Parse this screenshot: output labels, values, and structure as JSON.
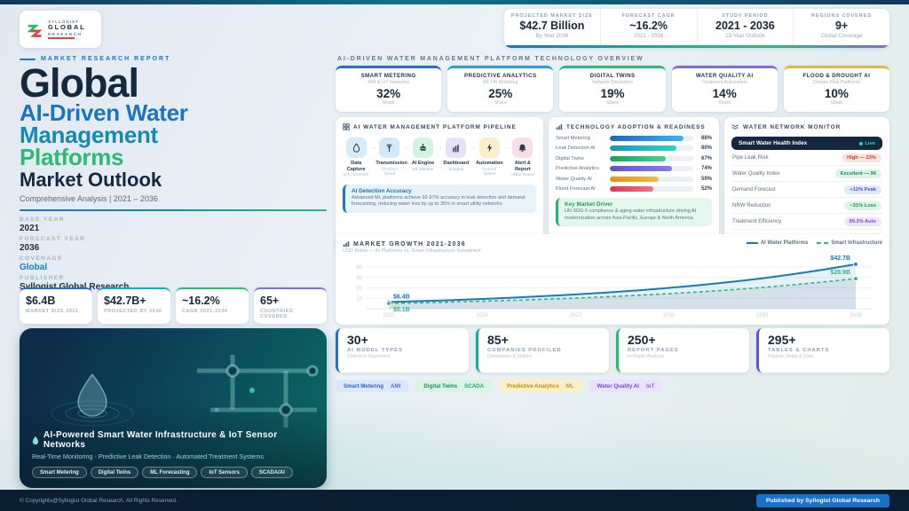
{
  "theme": {
    "navy": "#13283e",
    "blue": "#1a73c4",
    "teal": "#1789b5",
    "green": "#2eb874",
    "purple": "#7c6fd8",
    "amber": "#eab43e"
  },
  "brand": {
    "name_top": "SYLLOGIST",
    "name_mid": "GLOBAL",
    "name_bot": "RESEARCH",
    "report_tag": "MARKET RESEARCH REPORT"
  },
  "title": {
    "line1": "Global",
    "line2": "AI-Driven Water",
    "line3": "Management",
    "line4": "Platforms",
    "line5": "Market Outlook",
    "subtitle": "Comprehensive Analysis  |  2021 – 2036"
  },
  "meta": [
    {
      "label": "BASE YEAR",
      "value": "2021"
    },
    {
      "label": "FORECAST YEAR",
      "value": "2036"
    },
    {
      "label": "COVERAGE",
      "value": "Global"
    },
    {
      "label": "PUBLISHER",
      "value": "Syllogist Global Research"
    }
  ],
  "left_stats": [
    {
      "value": "$6.4B",
      "label": "MARKET SIZE 2021",
      "color": "#2b6cd0"
    },
    {
      "value": "$42.7B+",
      "label": "PROJECTED BY 2036",
      "color": "#17a8c4"
    },
    {
      "value": "~16.2%",
      "label": "CAGR 2021-2036",
      "color": "#2eb874"
    },
    {
      "value": "65+",
      "label": "COUNTRIES COVERED",
      "color": "#7c6fd8"
    }
  ],
  "hero": {
    "title": "AI-Powered Smart Water Infrastructure & IoT Sensor Networks",
    "subtitle": "Real-Time Monitoring · Predictive Leak Detection · Automated Treatment Systems",
    "chips": [
      "Smart Metering",
      "Digital Twins",
      "ML Forecasting",
      "IoT Sensors",
      "SCADA/AI"
    ]
  },
  "header_stats": [
    {
      "label": "PROJECTED MARKET SIZE",
      "value": "$42.7 Billion",
      "sub": "By Year 2036"
    },
    {
      "label": "FORECAST CAGR",
      "value": "~16.2%",
      "sub": "2021 - 2036"
    },
    {
      "label": "STUDY PERIOD",
      "value": "2021 - 2036",
      "sub": "15-Year Outlook"
    },
    {
      "label": "REGIONS COVERED",
      "value": "9+",
      "sub": "Global Coverage"
    }
  ],
  "section_label": "AI-DRIVEN WATER MANAGEMENT PLATFORM TECHNOLOGY OVERVIEW",
  "tech_cards": [
    {
      "name": "SMART METERING",
      "sub": "AMI & IoT Networks",
      "value": "32%",
      "share": "Share",
      "color": "#2b6cd0"
    },
    {
      "name": "PREDICTIVE ANALYTICS",
      "sub": "ML / AI Modeling",
      "value": "25%",
      "share": "Share",
      "color": "#2e9ad6"
    },
    {
      "name": "DIGITAL TWINS",
      "sub": "Network Simulation",
      "value": "19%",
      "share": "Share",
      "color": "#2eb874"
    },
    {
      "name": "WATER QUALITY AI",
      "sub": "Treatment Automation",
      "value": "14%",
      "share": "Share",
      "color": "#7c6fd8"
    },
    {
      "name": "FLOOD & DROUGHT AI",
      "sub": "Climate Risk Platforms",
      "value": "10%",
      "share": "Share",
      "color": "#eab43e"
    }
  ],
  "pipeline": {
    "heading": "AI WATER MANAGEMENT PLATFORM PIPELINE",
    "steps": [
      {
        "name": "Data Capture",
        "sub": "IoT / Sensors",
        "bg": "#d8eafb"
      },
      {
        "name": "Transmission",
        "sub": "SCADA / Cloud",
        "bg": "#d4e9f9"
      },
      {
        "name": "AI Engine",
        "sub": "ML Models",
        "bg": "#d4f3e1"
      },
      {
        "name": "Dashboard",
        "sub": "Insights",
        "bg": "#e6e0f8"
      },
      {
        "name": "Automation",
        "sub": "Control Valves",
        "bg": "#fbeecb"
      },
      {
        "name": "Alert & Report",
        "sub": "Utility Teams",
        "bg": "#fbdde6"
      }
    ],
    "note_title": "AI Detection Accuracy",
    "note_text": "Advanced ML platforms achieve 92-97% accuracy in leak detection and demand forecasting, reducing water loss by up to 35% in smart utility networks"
  },
  "adoption": {
    "heading": "TECHNOLOGY ADOPTION & READINESS",
    "bars": [
      {
        "label": "Smart Metering",
        "value": "88%",
        "grad": "linear-gradient(90deg,#1f63c9,#38b6f0)"
      },
      {
        "label": "Leak Detection AI",
        "value": "80%",
        "grad": "linear-gradient(90deg,#1396c4,#2ed3c4)"
      },
      {
        "label": "Digital Twins",
        "value": "67%",
        "grad": "linear-gradient(90deg,#18a35f,#4ccf8d)"
      },
      {
        "label": "Predictive Analytics",
        "value": "74%",
        "grad": "linear-gradient(90deg,#5a54d8,#8a7cf0)"
      },
      {
        "label": "Water Quality AI",
        "value": "59%",
        "grad": "linear-gradient(90deg,#e8920f,#f7bb45)"
      },
      {
        "label": "Flood Forecast AI",
        "value": "52%",
        "grad": "linear-gradient(90deg,#df3550,#f2708a)"
      }
    ],
    "note_title": "Key Market Driver",
    "note_text": "UN SDG 6 compliance & aging water infrastructure driving AI modernization across Asia-Pacific, Europe & North America"
  },
  "monitor": {
    "heading": "WATER NETWORK MONITOR",
    "index_title": "Smart Water Health Index",
    "live_label": "Live",
    "rows": [
      {
        "label": "Pipe Leak Risk",
        "badge": "High — 23%",
        "bg": "#fde4e4",
        "fg": "#d93025"
      },
      {
        "label": "Water Quality Index",
        "badge": "Excellent — 96",
        "bg": "#dcf5e7",
        "fg": "#13915d"
      },
      {
        "label": "Demand Forecast",
        "badge": "+12% Peak",
        "bg": "#e2e9fd",
        "fg": "#4558d4"
      },
      {
        "label": "NRW Reduction",
        "badge": "−31% Loss",
        "bg": "#dcf5e7",
        "fg": "#13915d"
      },
      {
        "label": "Treatment Efficiency",
        "badge": "99.2% Auto",
        "bg": "#ece6fb",
        "fg": "#7b46d8"
      },
      {
        "label": "Flood Risk Alert",
        "badge": "Moderate",
        "bg": "#fdf2cc",
        "fg": "#c08a10"
      }
    ]
  },
  "chart_data": {
    "type": "line",
    "title": "MARKET GROWTH 2021-2036",
    "subtitle": "USD Billion — AI Platforms vs. Smart Infrastructure Investment",
    "x": [
      2021,
      2022,
      2023,
      2024,
      2025,
      2026,
      2027,
      2028,
      2029,
      2030,
      2031,
      2032,
      2033,
      2034,
      2035,
      2036
    ],
    "xticks": [
      2021,
      2024,
      2027,
      2030,
      2033,
      2036
    ],
    "yticks": [
      10,
      20,
      30,
      40
    ],
    "ylim": [
      0,
      46
    ],
    "grid": true,
    "legend_position": "top-right",
    "series": [
      {
        "name": "AI Water Platforms",
        "color": "#1779c4",
        "fill": "rgba(23,121,196,0.10)",
        "dash": false,
        "values": [
          6.4,
          7.3,
          8.2,
          9.4,
          10.6,
          12.1,
          13.7,
          15.5,
          17.6,
          20.0,
          22.7,
          25.8,
          29.2,
          33.2,
          37.7,
          42.7
        ],
        "start_label": "$6.4B",
        "end_label": "$42.7B"
      },
      {
        "name": "Smart Infrastructure",
        "color": "#2eb874",
        "fill": "rgba(115,135,155,0.16)",
        "dash": true,
        "values": [
          5.1,
          5.7,
          6.4,
          7.2,
          8.1,
          9.1,
          10.2,
          11.5,
          12.9,
          14.5,
          16.2,
          18.2,
          20.4,
          23.0,
          25.8,
          28.9
        ],
        "start_label": "$5.1B",
        "end_label": "$28.9B"
      }
    ]
  },
  "bottom_stats": [
    {
      "value": "30+",
      "label": "AI MODEL TYPES",
      "sub": "Detection Algorithms",
      "color": "#2b6cd0"
    },
    {
      "value": "85+",
      "label": "COMPANIES PROFILED",
      "sub": "Developers & Utilities",
      "color": "#17a8a0"
    },
    {
      "value": "250+",
      "label": "REPORT PAGES",
      "sub": "In-Depth Analysis",
      "color": "#2eb874"
    },
    {
      "value": "295+",
      "label": "TABLES & CHARTS",
      "sub": "Figures, Maps & Data",
      "color": "#5a54d8"
    }
  ],
  "tags": [
    {
      "text": "Smart Metering",
      "tag": "AMI",
      "bg": "#dbe7fb",
      "fg": "#2b5fc7"
    },
    {
      "text": "Digital Twins",
      "tag": "SCADA",
      "bg": "#d9f4e5",
      "fg": "#17915c"
    },
    {
      "text": "Predictive Analytics",
      "tag": "ML",
      "bg": "#fdeec6",
      "fg": "#c08a10"
    },
    {
      "text": "Water Quality AI",
      "tag": "IoT",
      "bg": "#e9e2fa",
      "fg": "#7b46d8"
    }
  ],
  "footer": {
    "copyright": "© Copyrights@Syllogist Global Research. All Rights Reserved.",
    "published": "Published by Syllogist Global Research"
  }
}
